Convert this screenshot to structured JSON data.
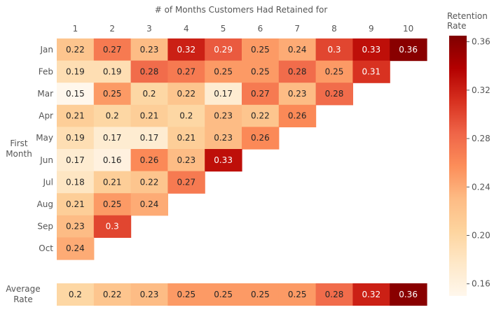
{
  "chart_data": {
    "type": "heatmap",
    "title": "",
    "xlabel": "# of Months Customers Had Retained for",
    "ylabel": "First Month",
    "x": [
      "1",
      "2",
      "3",
      "4",
      "5",
      "6",
      "7",
      "8",
      "9",
      "10"
    ],
    "y": [
      "Jan",
      "Feb",
      "Mar",
      "Apr",
      "May",
      "Jun",
      "Jul",
      "Aug",
      "Sep",
      "Oct"
    ],
    "values": [
      [
        0.22,
        0.27,
        0.23,
        0.32,
        0.29,
        0.25,
        0.24,
        0.3,
        0.33,
        0.36
      ],
      [
        0.19,
        0.19,
        0.28,
        0.27,
        0.25,
        0.25,
        0.28,
        0.25,
        0.31,
        null
      ],
      [
        0.15,
        0.25,
        0.2,
        0.22,
        0.17,
        0.27,
        0.23,
        0.28,
        null,
        null
      ],
      [
        0.21,
        0.2,
        0.21,
        0.2,
        0.23,
        0.22,
        0.26,
        null,
        null,
        null
      ],
      [
        0.19,
        0.17,
        0.17,
        0.21,
        0.23,
        0.26,
        null,
        null,
        null,
        null
      ],
      [
        0.17,
        0.16,
        0.26,
        0.23,
        0.33,
        null,
        null,
        null,
        null,
        null
      ],
      [
        0.18,
        0.21,
        0.22,
        0.27,
        null,
        null,
        null,
        null,
        null,
        null
      ],
      [
        0.21,
        0.25,
        0.24,
        null,
        null,
        null,
        null,
        null,
        null,
        null
      ],
      [
        0.23,
        0.3,
        null,
        null,
        null,
        null,
        null,
        null,
        null,
        null
      ],
      [
        0.24,
        null,
        null,
        null,
        null,
        null,
        null,
        null,
        null,
        null
      ]
    ],
    "average": {
      "label_lines": [
        "Average",
        "Rate"
      ],
      "values": [
        0.2,
        0.22,
        0.23,
        0.25,
        0.25,
        0.25,
        0.25,
        0.28,
        0.32,
        0.36
      ]
    },
    "colorbar": {
      "label_lines": [
        "Retention",
        "Rate"
      ],
      "min": 0.15,
      "max": 0.365,
      "ticks": [
        0.16,
        0.2,
        0.24,
        0.28,
        0.32,
        0.36
      ],
      "tick_labels": [
        "0.16",
        "0.20",
        "0.24",
        "0.28",
        "0.32",
        "0.36"
      ]
    },
    "colormap": "OrRd",
    "colormap_stops": [
      "#fff7ec",
      "#fee8c8",
      "#fdd49e",
      "#fdbb84",
      "#fc8d59",
      "#ef6548",
      "#d7301f",
      "#b30000",
      "#7f0000"
    ],
    "grid": false
  }
}
